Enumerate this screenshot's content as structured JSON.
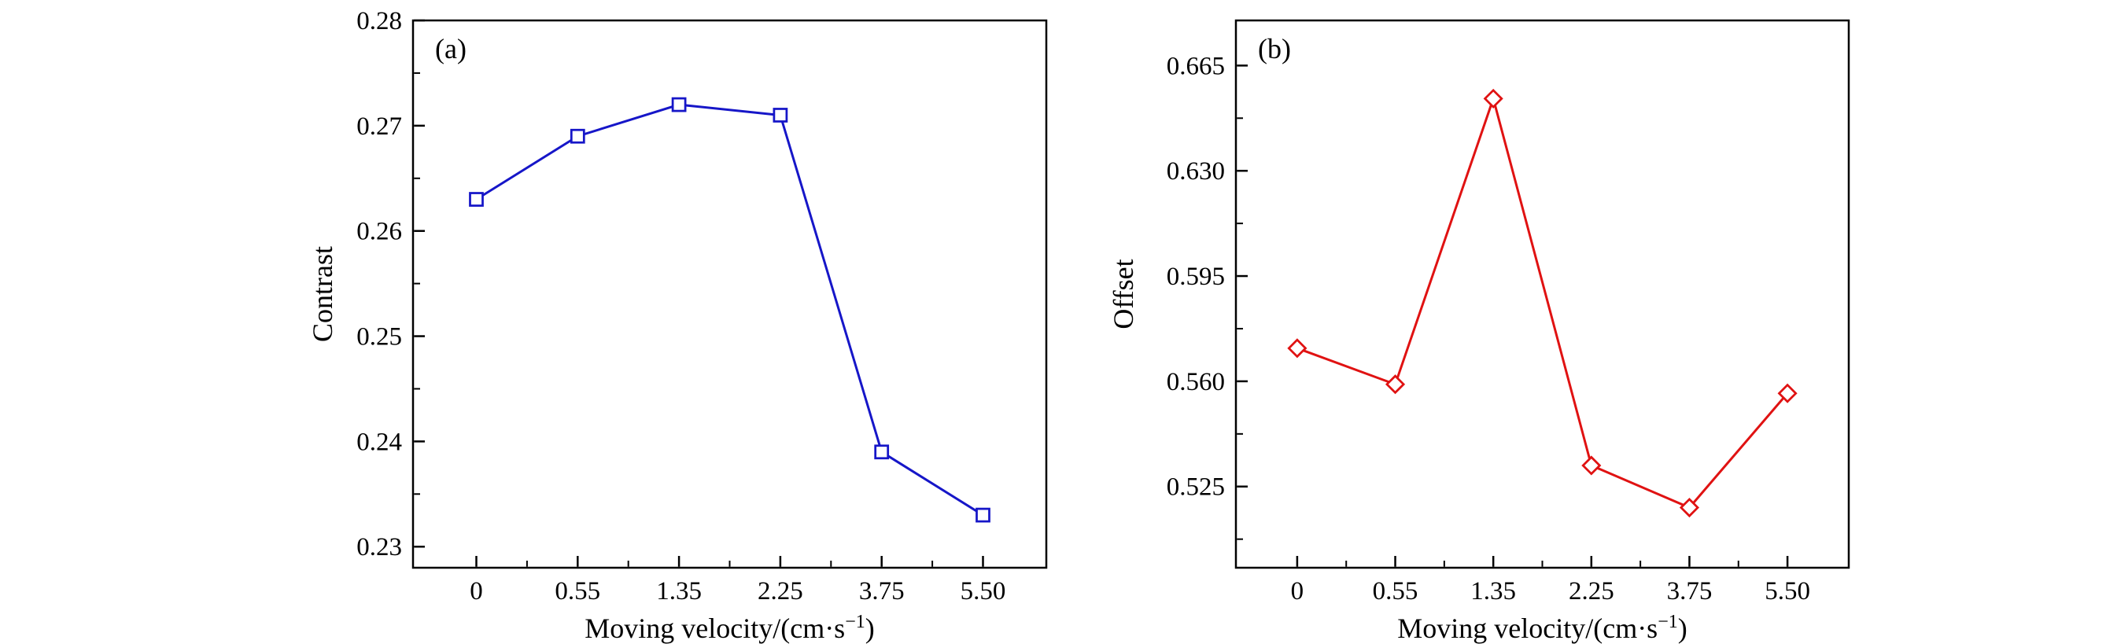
{
  "page": {
    "background": "#ffffff"
  },
  "chart_data": [
    {
      "type": "line",
      "panel_label": "(a)",
      "title": "",
      "xlabel": {
        "prefix": "Moving velocity/(cm·s",
        "sup": "−1",
        "suffix": ")"
      },
      "ylabel": "Contrast",
      "categories": [
        "0",
        "0.55",
        "1.35",
        "2.25",
        "3.75",
        "5.50"
      ],
      "values": [
        0.263,
        0.269,
        0.272,
        0.271,
        0.239,
        0.233
      ],
      "ylim": [
        0.228,
        0.28
      ],
      "y_ticks": [
        0.23,
        0.24,
        0.25,
        0.26,
        0.27,
        0.28
      ],
      "y_tick_labels": [
        "0.23",
        "0.24",
        "0.25",
        "0.26",
        "0.27",
        "0.28"
      ],
      "y_minor_step": 0.005,
      "line_color": "#1616c8",
      "marker": "square",
      "grid": false,
      "legend": "none"
    },
    {
      "type": "line",
      "panel_label": "(b)",
      "title": "",
      "xlabel": {
        "prefix": "Moving velocity/(cm·s",
        "sup": "−1",
        "suffix": ")"
      },
      "ylabel": "Offset",
      "categories": [
        "0",
        "0.55",
        "1.35",
        "2.25",
        "3.75",
        "5.50"
      ],
      "values": [
        0.571,
        0.559,
        0.654,
        0.532,
        0.518,
        0.556
      ],
      "ylim": [
        0.498,
        0.68
      ],
      "y_ticks": [
        0.525,
        0.56,
        0.595,
        0.63,
        0.665
      ],
      "y_tick_labels": [
        "0.525",
        "0.560",
        "0.595",
        "0.630",
        "0.665"
      ],
      "y_minor_step": 0.0175,
      "line_color": "#e01212",
      "marker": "diamond",
      "grid": false,
      "legend": "none"
    }
  ]
}
